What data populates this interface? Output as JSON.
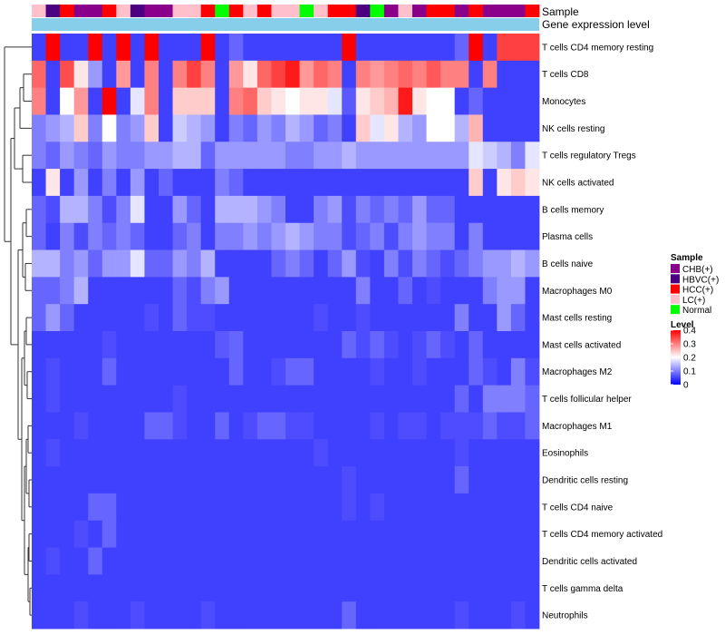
{
  "chart_data": {
    "type": "heatmap",
    "annotation_tracks": [
      "Sample",
      "Gene expression level"
    ],
    "rows": [
      "T cells CD4 memory resting",
      "T cells CD8",
      "Monocytes",
      "NK cells resting",
      "T cells regulatory  Tregs",
      "NK cells activated",
      "B cells memory",
      "Plasma cells",
      "B cells naive",
      "Macrophages M0",
      "Mast cells resting",
      "Mast cells activated",
      "Macrophages M2",
      "T cells follicular helper",
      "Macrophages M1",
      "Eosinophils",
      "Dendritic cells resting",
      "T cells CD4 naive",
      "T cells CD4 memory activated",
      "Dendritic cells activated",
      "T cells gamma delta",
      "Neutrophils"
    ],
    "sample_groups": [
      "LC(+)",
      "HBVC(+)",
      "HCC(+)",
      "CHB(+)",
      "CHB(+)",
      "HCC(+)",
      "LC(+)",
      "HBVC(+)",
      "CHB(+)",
      "CHB(+)",
      "LC(+)",
      "LC(+)",
      "HCC(+)",
      "Normal",
      "HCC(+)",
      "LC(+)",
      "HCC(+)",
      "LC(+)",
      "LC(+)",
      "Normal",
      "LC(+)",
      "HCC(+)",
      "HCC(+)",
      "HBVC(+)",
      "Normal",
      "CHB(+)",
      "LC(+)",
      "CHB(+)",
      "HCC(+)",
      "HCC(+)",
      "CHB(+)",
      "HCC(+)",
      "CHB(+)",
      "CHB(+)",
      "CHB(+)",
      "HCC(+)"
    ],
    "values": [
      [
        0.05,
        0.4,
        0.05,
        0.05,
        0.4,
        0.05,
        0.4,
        0.05,
        0.4,
        0.05,
        0.05,
        0.05,
        0.4,
        0.05,
        0.08,
        0.05,
        0.05,
        0.05,
        0.05,
        0.05,
        0.05,
        0.05,
        0.4,
        0.05,
        0.05,
        0.05,
        0.05,
        0.05,
        0.05,
        0.05,
        0.08,
        0.4,
        0.05,
        0.35,
        0.35,
        0.35
      ],
      [
        0.32,
        0.05,
        0.34,
        0.22,
        0.12,
        0.05,
        0.28,
        0.05,
        0.3,
        0.05,
        0.3,
        0.35,
        0.3,
        0.05,
        0.28,
        0.22,
        0.32,
        0.35,
        0.38,
        0.28,
        0.32,
        0.3,
        0.05,
        0.3,
        0.28,
        0.3,
        0.32,
        0.3,
        0.33,
        0.3,
        0.3,
        0.05,
        0.3,
        0.05,
        0.05,
        0.05
      ],
      [
        0.3,
        0.05,
        0.2,
        0.28,
        0.05,
        0.4,
        0.05,
        0.18,
        0.3,
        0.05,
        0.24,
        0.24,
        0.24,
        0.05,
        0.3,
        0.32,
        0.24,
        0.22,
        0.2,
        0.22,
        0.22,
        0.18,
        0.07,
        0.22,
        0.24,
        0.26,
        0.38,
        0.22,
        0.2,
        0.2,
        0.05,
        0.08,
        0.05,
        0.05,
        0.05,
        0.05
      ],
      [
        0.1,
        0.12,
        0.14,
        0.24,
        0.1,
        0.2,
        0.1,
        0.12,
        0.24,
        0.05,
        0.16,
        0.14,
        0.12,
        0.05,
        0.1,
        0.08,
        0.12,
        0.1,
        0.14,
        0.12,
        0.08,
        0.1,
        0.05,
        0.24,
        0.18,
        0.22,
        0.14,
        0.12,
        0.2,
        0.2,
        0.14,
        0.26,
        0.05,
        0.05,
        0.05,
        0.05
      ],
      [
        0.1,
        0.08,
        0.12,
        0.1,
        0.08,
        0.12,
        0.1,
        0.1,
        0.12,
        0.12,
        0.14,
        0.14,
        0.08,
        0.12,
        0.12,
        0.12,
        0.12,
        0.12,
        0.1,
        0.1,
        0.12,
        0.12,
        0.14,
        0.12,
        0.12,
        0.12,
        0.12,
        0.12,
        0.12,
        0.12,
        0.12,
        0.18,
        0.16,
        0.14,
        0.1,
        0.18
      ],
      [
        0.05,
        0.22,
        0.05,
        0.12,
        0.05,
        0.1,
        0.05,
        0.12,
        0.05,
        0.08,
        0.05,
        0.05,
        0.05,
        0.1,
        0.08,
        0.05,
        0.05,
        0.05,
        0.05,
        0.05,
        0.05,
        0.05,
        0.05,
        0.05,
        0.05,
        0.05,
        0.05,
        0.05,
        0.05,
        0.05,
        0.05,
        0.24,
        0.05,
        0.22,
        0.24,
        0.22
      ],
      [
        0.08,
        0.06,
        0.14,
        0.14,
        0.1,
        0.06,
        0.1,
        0.18,
        0.05,
        0.05,
        0.12,
        0.08,
        0.05,
        0.14,
        0.14,
        0.14,
        0.12,
        0.1,
        0.05,
        0.05,
        0.1,
        0.12,
        0.06,
        0.1,
        0.08,
        0.1,
        0.08,
        0.12,
        0.08,
        0.08,
        0.05,
        0.05,
        0.05,
        0.05,
        0.05,
        0.05
      ],
      [
        0.08,
        0.05,
        0.1,
        0.06,
        0.1,
        0.08,
        0.1,
        0.08,
        0.05,
        0.05,
        0.08,
        0.1,
        0.05,
        0.1,
        0.1,
        0.12,
        0.1,
        0.12,
        0.14,
        0.12,
        0.1,
        0.1,
        0.06,
        0.08,
        0.1,
        0.06,
        0.1,
        0.12,
        0.1,
        0.1,
        0.05,
        0.1,
        0.05,
        0.05,
        0.05,
        0.05
      ],
      [
        0.14,
        0.14,
        0.1,
        0.12,
        0.08,
        0.12,
        0.12,
        0.18,
        0.08,
        0.08,
        0.12,
        0.1,
        0.14,
        0.05,
        0.05,
        0.05,
        0.05,
        0.08,
        0.1,
        0.08,
        0.05,
        0.08,
        0.12,
        0.06,
        0.05,
        0.1,
        0.06,
        0.1,
        0.08,
        0.06,
        0.08,
        0.1,
        0.12,
        0.12,
        0.14,
        0.12
      ],
      [
        0.08,
        0.08,
        0.1,
        0.14,
        0.05,
        0.05,
        0.05,
        0.05,
        0.05,
        0.05,
        0.08,
        0.06,
        0.1,
        0.12,
        0.05,
        0.05,
        0.05,
        0.05,
        0.05,
        0.05,
        0.05,
        0.05,
        0.05,
        0.1,
        0.05,
        0.05,
        0.08,
        0.05,
        0.06,
        0.05,
        0.05,
        0.05,
        0.1,
        0.12,
        0.12,
        0.05
      ],
      [
        0.08,
        0.12,
        0.08,
        0.05,
        0.05,
        0.05,
        0.05,
        0.05,
        0.06,
        0.05,
        0.08,
        0.06,
        0.06,
        0.05,
        0.05,
        0.05,
        0.05,
        0.05,
        0.05,
        0.05,
        0.06,
        0.05,
        0.05,
        0.06,
        0.05,
        0.05,
        0.05,
        0.05,
        0.05,
        0.05,
        0.1,
        0.05,
        0.05,
        0.12,
        0.08,
        0.05
      ],
      [
        0.05,
        0.05,
        0.05,
        0.05,
        0.05,
        0.06,
        0.05,
        0.05,
        0.05,
        0.05,
        0.05,
        0.05,
        0.05,
        0.07,
        0.08,
        0.05,
        0.05,
        0.05,
        0.05,
        0.05,
        0.05,
        0.05,
        0.08,
        0.06,
        0.08,
        0.06,
        0.05,
        0.06,
        0.08,
        0.06,
        0.05,
        0.08,
        0.05,
        0.05,
        0.05,
        0.05
      ],
      [
        0.05,
        0.06,
        0.05,
        0.05,
        0.05,
        0.08,
        0.05,
        0.05,
        0.05,
        0.05,
        0.05,
        0.05,
        0.05,
        0.05,
        0.08,
        0.05,
        0.05,
        0.06,
        0.08,
        0.08,
        0.05,
        0.05,
        0.05,
        0.05,
        0.06,
        0.05,
        0.05,
        0.06,
        0.05,
        0.05,
        0.05,
        0.08,
        0.06,
        0.05,
        0.1,
        0.06
      ],
      [
        0.05,
        0.06,
        0.05,
        0.05,
        0.05,
        0.05,
        0.05,
        0.05,
        0.05,
        0.05,
        0.06,
        0.05,
        0.05,
        0.05,
        0.05,
        0.05,
        0.05,
        0.05,
        0.05,
        0.05,
        0.05,
        0.05,
        0.05,
        0.05,
        0.05,
        0.05,
        0.05,
        0.05,
        0.05,
        0.05,
        0.08,
        0.05,
        0.1,
        0.1,
        0.1,
        0.08
      ],
      [
        0.05,
        0.05,
        0.05,
        0.06,
        0.05,
        0.05,
        0.05,
        0.05,
        0.08,
        0.08,
        0.06,
        0.05,
        0.05,
        0.08,
        0.05,
        0.06,
        0.08,
        0.08,
        0.06,
        0.06,
        0.05,
        0.05,
        0.05,
        0.05,
        0.06,
        0.05,
        0.06,
        0.06,
        0.05,
        0.06,
        0.06,
        0.06,
        0.08,
        0.06,
        0.06,
        0.08
      ],
      [
        0.05,
        0.06,
        0.05,
        0.05,
        0.05,
        0.05,
        0.05,
        0.05,
        0.05,
        0.05,
        0.05,
        0.05,
        0.05,
        0.05,
        0.05,
        0.05,
        0.05,
        0.05,
        0.05,
        0.05,
        0.06,
        0.05,
        0.05,
        0.05,
        0.05,
        0.05,
        0.05,
        0.05,
        0.05,
        0.05,
        0.06,
        0.05,
        0.05,
        0.05,
        0.05,
        0.05
      ],
      [
        0.05,
        0.05,
        0.05,
        0.05,
        0.05,
        0.05,
        0.05,
        0.05,
        0.05,
        0.05,
        0.05,
        0.05,
        0.05,
        0.05,
        0.05,
        0.05,
        0.05,
        0.05,
        0.05,
        0.05,
        0.05,
        0.05,
        0.06,
        0.05,
        0.05,
        0.05,
        0.05,
        0.05,
        0.05,
        0.05,
        0.08,
        0.05,
        0.05,
        0.05,
        0.05,
        0.05
      ],
      [
        0.05,
        0.05,
        0.05,
        0.05,
        0.08,
        0.08,
        0.05,
        0.05,
        0.05,
        0.05,
        0.05,
        0.05,
        0.05,
        0.05,
        0.05,
        0.05,
        0.05,
        0.05,
        0.05,
        0.05,
        0.05,
        0.05,
        0.06,
        0.05,
        0.06,
        0.05,
        0.05,
        0.05,
        0.05,
        0.05,
        0.05,
        0.05,
        0.05,
        0.05,
        0.05,
        0.05
      ],
      [
        0.05,
        0.05,
        0.05,
        0.06,
        0.05,
        0.08,
        0.05,
        0.05,
        0.05,
        0.05,
        0.05,
        0.05,
        0.05,
        0.05,
        0.05,
        0.05,
        0.05,
        0.05,
        0.05,
        0.05,
        0.05,
        0.05,
        0.05,
        0.05,
        0.05,
        0.05,
        0.05,
        0.05,
        0.05,
        0.05,
        0.05,
        0.05,
        0.05,
        0.05,
        0.05,
        0.05
      ],
      [
        0.05,
        0.06,
        0.05,
        0.05,
        0.08,
        0.05,
        0.05,
        0.05,
        0.05,
        0.05,
        0.05,
        0.05,
        0.05,
        0.05,
        0.05,
        0.05,
        0.05,
        0.05,
        0.05,
        0.05,
        0.05,
        0.05,
        0.05,
        0.05,
        0.05,
        0.05,
        0.05,
        0.05,
        0.05,
        0.05,
        0.05,
        0.05,
        0.05,
        0.05,
        0.05,
        0.05
      ],
      [
        0.05,
        0.05,
        0.05,
        0.05,
        0.05,
        0.05,
        0.05,
        0.05,
        0.05,
        0.05,
        0.05,
        0.05,
        0.05,
        0.05,
        0.05,
        0.05,
        0.05,
        0.05,
        0.05,
        0.05,
        0.05,
        0.05,
        0.05,
        0.05,
        0.05,
        0.05,
        0.05,
        0.05,
        0.05,
        0.05,
        0.05,
        0.05,
        0.05,
        0.05,
        0.05,
        0.05
      ],
      [
        0.05,
        0.05,
        0.05,
        0.06,
        0.05,
        0.05,
        0.05,
        0.06,
        0.05,
        0.05,
        0.05,
        0.05,
        0.06,
        0.05,
        0.05,
        0.05,
        0.05,
        0.05,
        0.05,
        0.05,
        0.05,
        0.05,
        0.08,
        0.05,
        0.05,
        0.05,
        0.05,
        0.05,
        0.05,
        0.05,
        0.06,
        0.05,
        0.05,
        0.05,
        0.06,
        0.05
      ]
    ],
    "color_scale": {
      "min": 0,
      "max": 0.4,
      "colors": [
        "#0000ff",
        "#ffffff",
        "#ff0000"
      ]
    },
    "sample_legend": {
      "title": "Sample",
      "entries": [
        {
          "label": "CHB(+)",
          "color": "#8b008b"
        },
        {
          "label": "HBVC(+)",
          "color": "#4b0082"
        },
        {
          "label": "HCC(+)",
          "color": "#ff0000"
        },
        {
          "label": "LC(+)",
          "color": "#ffc0cb"
        },
        {
          "label": "Normal",
          "color": "#00ff00"
        }
      ]
    },
    "level_legend": {
      "title": "Level",
      "ticks": [
        "0.4",
        "0.3",
        "0.2",
        "0.1",
        "0"
      ]
    },
    "gene_expression_color": "#87ceeb"
  }
}
